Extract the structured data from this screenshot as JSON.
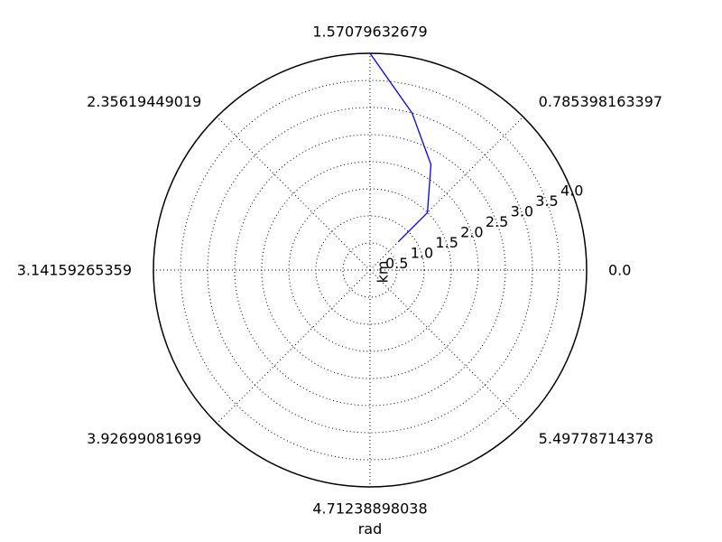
{
  "chart_data": {
    "type": "line",
    "projection": "polar",
    "theta_unit_label": "rad",
    "r_unit_label": "km",
    "theta_tick_labels": [
      {
        "value": 0.0,
        "label": "0.0"
      },
      {
        "value": 0.785398163397,
        "label": "0.785398163397"
      },
      {
        "value": 1.57079632679,
        "label": "1.57079632679"
      },
      {
        "value": 2.35619449019,
        "label": "2.35619449019"
      },
      {
        "value": 3.14159265359,
        "label": "3.14159265359"
      },
      {
        "value": 3.92699081699,
        "label": "3.92699081699"
      },
      {
        "value": 4.71238898038,
        "label": "4.71238898038"
      },
      {
        "value": 5.49778714378,
        "label": "5.49778714378"
      }
    ],
    "r_tick_labels": [
      {
        "value": 0.5,
        "label": "0.5"
      },
      {
        "value": 1.0,
        "label": "1.0"
      },
      {
        "value": 1.5,
        "label": "1.5"
      },
      {
        "value": 2.0,
        "label": "2.0"
      },
      {
        "value": 2.5,
        "label": "2.5"
      },
      {
        "value": 3.0,
        "label": "3.0"
      },
      {
        "value": 3.5,
        "label": "3.5"
      },
      {
        "value": 4.0,
        "label": "4.0"
      }
    ],
    "rlim": [
      0,
      4.0
    ],
    "r_label_angle": 0.3927,
    "grid": true,
    "series": [
      {
        "color": "#0000ff",
        "points": [
          {
            "theta": 0.7854,
            "r": 0.75
          },
          {
            "theta": 0.7854,
            "r": 1.5
          },
          {
            "theta": 1.0472,
            "r": 2.25
          },
          {
            "theta": 1.3091,
            "r": 3.0
          },
          {
            "theta": 1.5708,
            "r": 4.0
          }
        ]
      }
    ]
  }
}
